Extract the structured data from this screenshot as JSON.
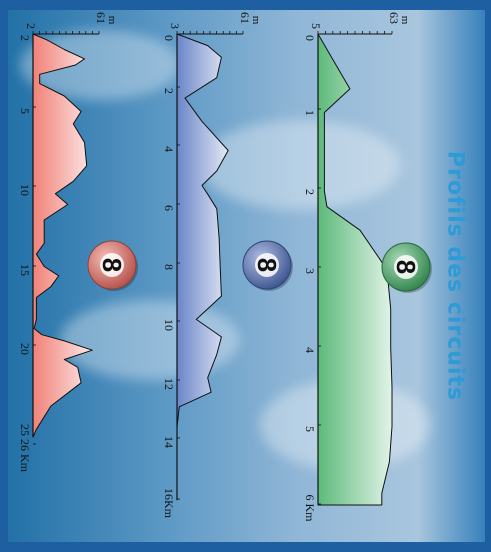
{
  "title": "Profils des circuits",
  "chart_data": [
    {
      "type": "area",
      "color": "#3fae63",
      "badge": "8",
      "y_unit": "m",
      "y_tick_labels": [
        "5",
        "63"
      ],
      "ylim": [
        5,
        63
      ],
      "xlim": [
        0,
        6
      ],
      "x_tick_labels": [
        "0",
        "1",
        "2",
        "3",
        "4",
        "5",
        "6 Km"
      ],
      "x": [
        0,
        0.7,
        1.0,
        1.8,
        2.0,
        2.2,
        2.5,
        3.0,
        3.5,
        4.0,
        4.5,
        5.0,
        5.45,
        5.85,
        6.0
      ],
      "y": [
        5,
        30,
        10,
        10,
        10,
        12,
        38,
        59,
        62,
        62,
        63,
        63,
        61,
        55,
        55
      ]
    },
    {
      "type": "area",
      "color": "#4f6fbf",
      "badge": "8",
      "y_unit": "m",
      "y_tick_labels": [
        "3",
        "61"
      ],
      "ylim": [
        3,
        61
      ],
      "xlim": [
        0,
        16
      ],
      "x_tick_labels": [
        "0",
        "2",
        "4",
        "6",
        "8",
        "10",
        "12",
        "14",
        "16Km"
      ],
      "x": [
        0,
        0.4,
        0.8,
        1.5,
        2.2,
        3.0,
        4.0,
        4.7,
        5.2,
        5.5,
        6.0,
        7.0,
        8.0,
        9.0,
        9.8,
        10.4,
        11.0,
        11.8,
        12.3,
        12.8,
        13.5,
        14.5,
        15.5,
        16.0
      ],
      "y": [
        3,
        30,
        42,
        38,
        10,
        25,
        48,
        38,
        25,
        30,
        38,
        40,
        41,
        42,
        20,
        42,
        38,
        30,
        33,
        5,
        3,
        3,
        3,
        3
      ]
    },
    {
      "type": "area",
      "color": "#ee6b60",
      "badge": "8",
      "y_unit": "m",
      "y_tick_labels": [
        "2",
        "61"
      ],
      "ylim": [
        2,
        61
      ],
      "xlim": [
        0,
        26
      ],
      "x_tick_labels": [
        "2",
        "5",
        "10",
        "15",
        "20",
        "25 26 Km"
      ],
      "x": [
        0,
        0.4,
        1.0,
        1.6,
        2.0,
        2.6,
        3.2,
        4.0,
        5.0,
        5.8,
        7.0,
        8.5,
        9.5,
        10.3,
        11.0,
        12.0,
        13.5,
        14.2,
        15.0,
        15.6,
        16.3,
        17.0,
        17.8,
        18.4,
        19.0,
        19.4,
        19.8,
        20.4,
        21.0,
        21.5,
        22.5,
        24.0,
        25.5,
        26.0
      ],
      "y": [
        2,
        15,
        30,
        48,
        40,
        8,
        8,
        30,
        45,
        38,
        48,
        50,
        38,
        22,
        33,
        12,
        12,
        5,
        12,
        25,
        18,
        5,
        5,
        5,
        3,
        10,
        30,
        55,
        30,
        42,
        45,
        18,
        5,
        2
      ]
    }
  ]
}
